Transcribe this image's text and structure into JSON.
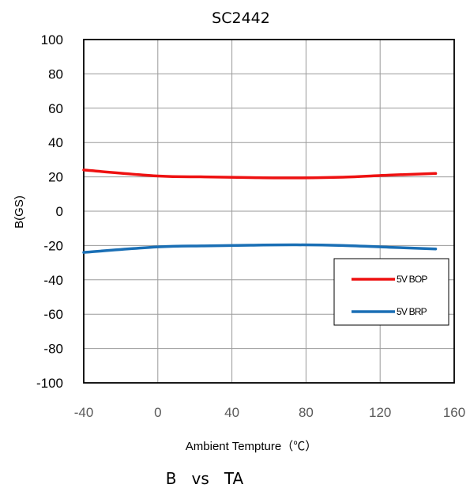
{
  "chart_data": {
    "type": "line",
    "title": "SC2442",
    "xlabel": "Ambient Tempture（℃）",
    "ylabel": "B(GS)",
    "caption": "B   vs   TA",
    "xlim": [
      -40,
      160
    ],
    "ylim": [
      -100,
      100
    ],
    "x_ticks": [
      "-40",
      "0",
      "40",
      "80",
      "120",
      "160"
    ],
    "y_ticks": [
      "100",
      "80",
      "60",
      "40",
      "20",
      "0",
      "-20",
      "-40",
      "-60",
      "-80",
      "-100"
    ],
    "grid": true,
    "legend_position": "lower-right",
    "series": [
      {
        "name": "5V BOP",
        "color": "#ee1111",
        "x": [
          -40,
          0,
          25,
          50,
          75,
          100,
          125,
          150
        ],
        "y": [
          24,
          20.5,
          20,
          19.6,
          19.4,
          19.8,
          21,
          22
        ]
      },
      {
        "name": "5V BRP",
        "color": "#1a6fb5",
        "x": [
          -40,
          0,
          25,
          50,
          75,
          100,
          125,
          150
        ],
        "y": [
          -24,
          -20.8,
          -20.2,
          -19.8,
          -19.6,
          -20,
          -21,
          -22
        ]
      }
    ]
  }
}
